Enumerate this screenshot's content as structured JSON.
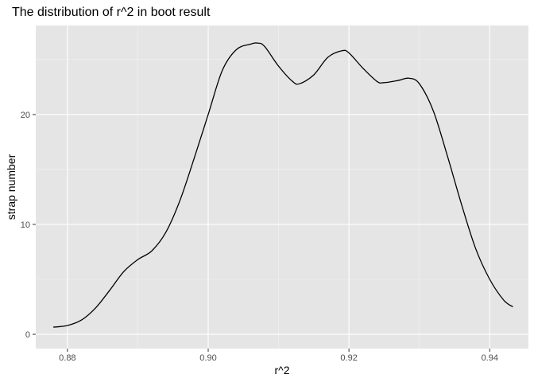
{
  "chart_data": {
    "type": "line",
    "title": "The distribution of r^2 in boot result",
    "xlabel": "r^2",
    "ylabel": "strap number",
    "xlim": [
      0.8755,
      0.9455
    ],
    "ylim": [
      -1.3,
      28.1
    ],
    "x_ticks": [
      0.88,
      0.9,
      0.92,
      0.94
    ],
    "x_tick_labels": [
      "0.88",
      "0.90",
      "0.92",
      "0.94"
    ],
    "y_ticks": [
      0,
      10,
      20
    ],
    "y_tick_labels": [
      "0",
      "10",
      "20"
    ],
    "grid": true,
    "legend": "none",
    "colors": {
      "panel_background": "#e5e5e5",
      "grid_major": "#ffffff",
      "grid_minor": "#f2f2f2",
      "line": "#000000",
      "tick_text": "#4d4d4d",
      "label_text": "#000000"
    },
    "series": [
      {
        "x": [
          0.878,
          0.88,
          0.882,
          0.884,
          0.886,
          0.888,
          0.89,
          0.892,
          0.894,
          0.896,
          0.898,
          0.9,
          0.902,
          0.904,
          0.906,
          0.907,
          0.908,
          0.91,
          0.912,
          0.913,
          0.915,
          0.917,
          0.919,
          0.92,
          0.922,
          0.924,
          0.925,
          0.927,
          0.9285,
          0.93,
          0.932,
          0.934,
          0.936,
          0.938,
          0.94,
          0.942,
          0.9433
        ],
        "y": [
          0.65,
          0.8,
          1.3,
          2.4,
          4.0,
          5.7,
          6.8,
          7.6,
          9.3,
          12.2,
          16.0,
          20.0,
          24.0,
          25.9,
          26.4,
          26.5,
          26.2,
          24.4,
          23.0,
          22.8,
          23.6,
          25.2,
          25.8,
          25.6,
          24.2,
          23.0,
          22.9,
          23.1,
          23.3,
          22.8,
          20.3,
          16.2,
          11.8,
          7.8,
          5.0,
          3.1,
          2.5
        ]
      }
    ]
  }
}
